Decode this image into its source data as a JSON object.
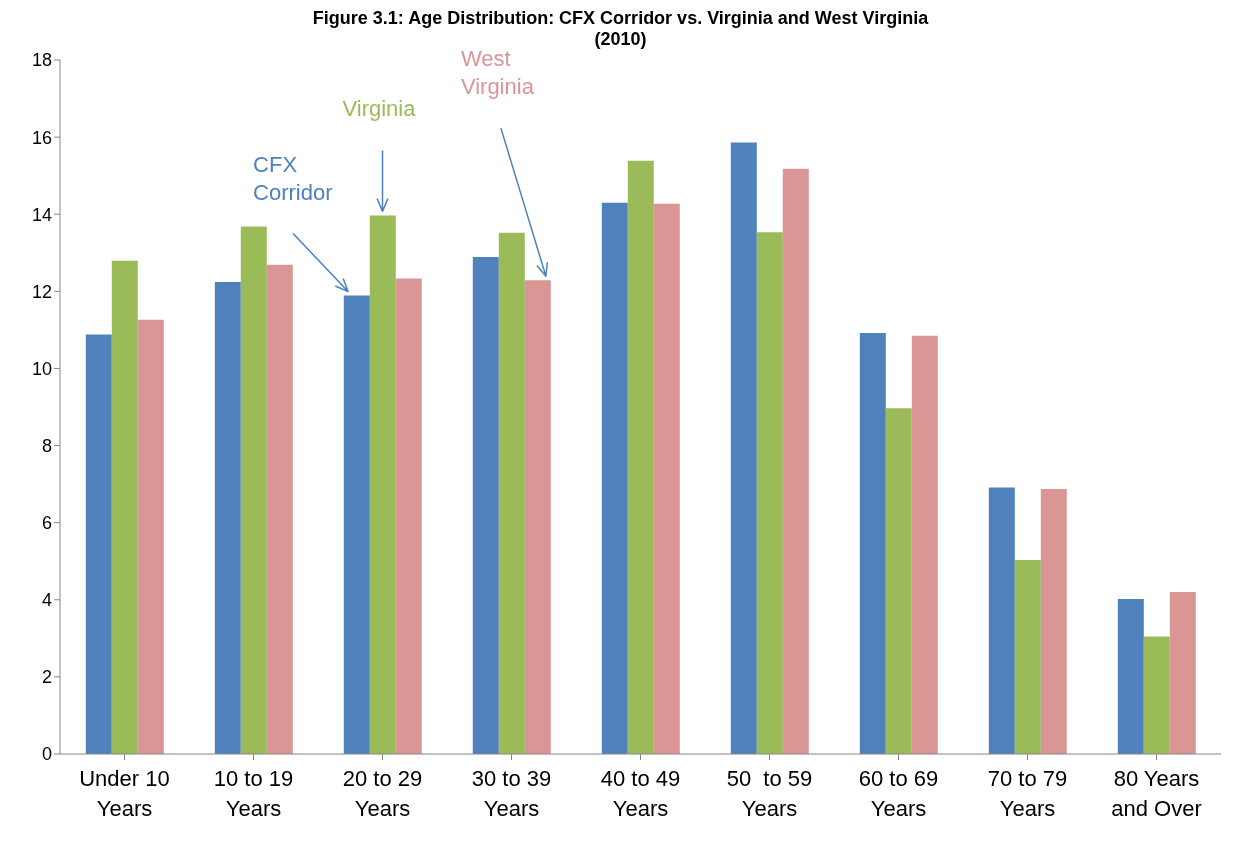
{
  "chart_data": {
    "type": "bar",
    "title": "Figure 3.1: Age Distribution: CFX Corridor vs. Virginia and West Virginia (2010)",
    "categories": [
      "Under 10 Years",
      "10 to 19 Years",
      "20 to 29 Years",
      "30 to 39 Years",
      "40 to 49 Years",
      "50  to 59 Years",
      "60 to 69 Years",
      "70 to 79 Years",
      "80 Years and Over"
    ],
    "series": [
      {
        "name": "CFX Corridor",
        "color": "#4f81bd",
        "values": [
          10.88,
          12.24,
          11.89,
          12.89,
          14.3,
          15.86,
          10.92,
          6.91,
          4.02
        ]
      },
      {
        "name": "Virginia",
        "color": "#9bbb59",
        "values": [
          12.79,
          13.68,
          13.97,
          13.52,
          15.39,
          13.53,
          8.97,
          5.03,
          3.05
        ]
      },
      {
        "name": "West Virginia",
        "color": "#d99694",
        "values": [
          11.26,
          12.69,
          12.33,
          12.29,
          14.27,
          15.18,
          10.85,
          6.87,
          4.2
        ]
      }
    ],
    "ylim": [
      0,
      18
    ],
    "yticks": [
      0,
      2,
      4,
      6,
      8,
      10,
      12,
      14,
      16,
      18
    ],
    "grid": false,
    "legend": false
  }
}
